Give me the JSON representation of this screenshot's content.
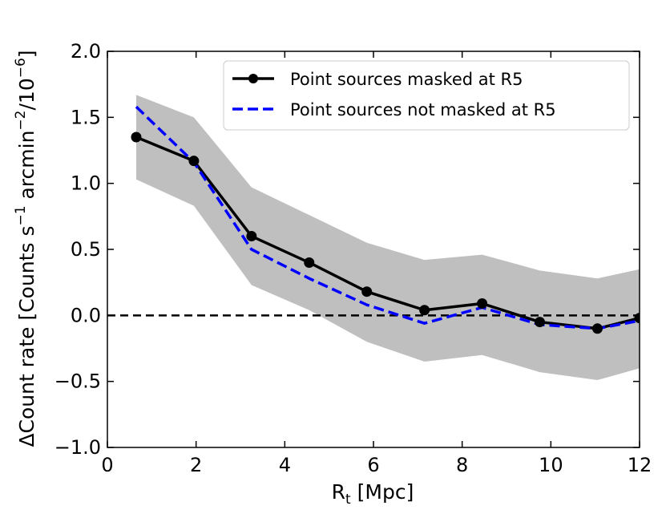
{
  "chart_data": {
    "type": "line",
    "xlabel_main": "R",
    "xlabel_sub": "t",
    "xlabel_unit": " [Mpc]",
    "ylabel_main": "ΔCount rate [Counts s",
    "ylabel_sup1": "−1",
    "ylabel_mid": " arcmin",
    "ylabel_sup2": "−2",
    "ylabel_end": "/10",
    "ylabel_sup3": "−6",
    "ylabel_close": "]",
    "xlim": [
      0,
      12
    ],
    "ylim": [
      -1.0,
      2.0
    ],
    "xticks": [
      0,
      2,
      4,
      6,
      8,
      10,
      12
    ],
    "xtick_labels": [
      "0",
      "2",
      "4",
      "6",
      "8",
      "10",
      "12"
    ],
    "yticks": [
      -1.0,
      -0.5,
      0.0,
      0.5,
      1.0,
      1.5,
      2.0
    ],
    "ytick_labels": [
      "−1.0",
      "−0.5",
      "0.0",
      "0.5",
      "1.0",
      "1.5",
      "2.0"
    ],
    "x": [
      0.65,
      1.95,
      3.25,
      4.55,
      5.85,
      7.15,
      8.45,
      9.75,
      11.05,
      12.0
    ],
    "band": {
      "name": "uncertainty",
      "color": "#bfbfbf",
      "lower": [
        1.03,
        0.83,
        0.23,
        0.04,
        -0.2,
        -0.35,
        -0.3,
        -0.43,
        -0.49,
        -0.4
      ],
      "upper": [
        1.67,
        1.5,
        0.97,
        0.76,
        0.55,
        0.42,
        0.46,
        0.34,
        0.28,
        0.35
      ]
    },
    "series": [
      {
        "name": "Point sources masked at R5",
        "color": "#000000",
        "style": "solid-markers",
        "values": [
          1.35,
          1.17,
          0.6,
          0.4,
          0.18,
          0.04,
          0.09,
          -0.05,
          -0.1,
          -0.02
        ]
      },
      {
        "name": "Point sources not masked at R5",
        "color": "#0000ff",
        "style": "dashed",
        "values": [
          1.58,
          1.16,
          0.5,
          0.28,
          0.08,
          -0.06,
          0.06,
          -0.07,
          -0.1,
          -0.04
        ]
      }
    ],
    "reference_line": {
      "y": 0.0,
      "color": "#000000",
      "style": "dashed"
    },
    "legend_position": "top-right"
  }
}
